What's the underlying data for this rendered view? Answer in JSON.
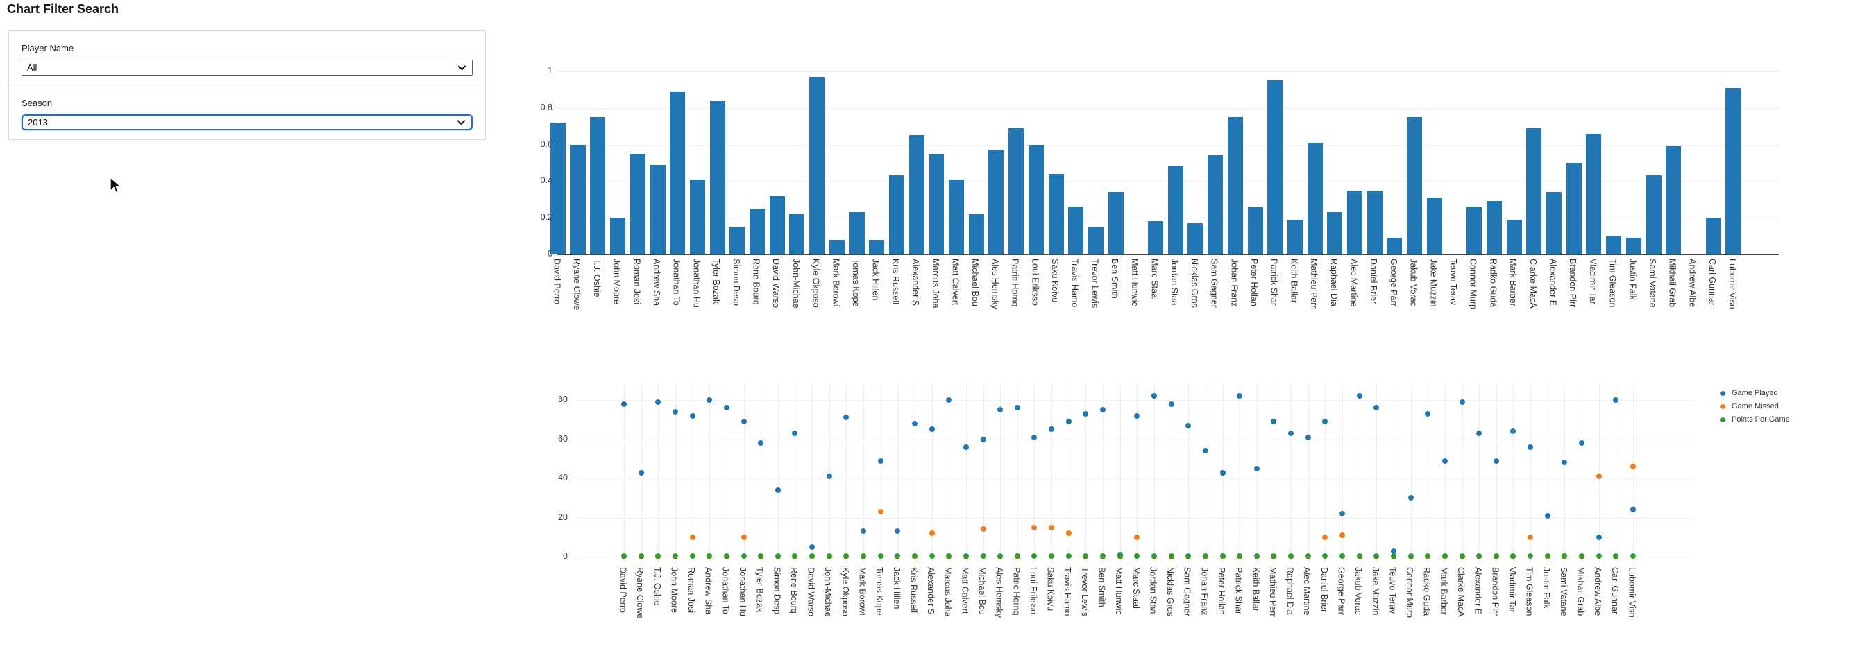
{
  "page": {
    "title": "Chart Filter Search"
  },
  "filters": {
    "player_name": {
      "label": "Player Name",
      "value": "All"
    },
    "season": {
      "label": "Season",
      "value": "2013"
    }
  },
  "colors": {
    "bar_blue": "#2077b4",
    "game_played": "#2077b4",
    "game_missed": "#f07d1a",
    "points_per_game": "#2ca02c",
    "focus_blue": "#1b6fd8",
    "gridline": "#efefef",
    "axis": "#454545"
  },
  "players": [
    "David Perro",
    "Ryane Clowe",
    "T.J. Oshie",
    "John Moore",
    "Roman Josi",
    "Andrew Sha",
    "Jonathan To",
    "Jonathan Hu",
    "Tyler Bozak",
    "Simon Desp",
    "Rene Bourq",
    "David Warso",
    "John-Michae",
    "Kyle Okposo",
    "Mark Borowi",
    "Tomas Kope",
    "Jack Hillen",
    "Kris Russell",
    "Alexander S",
    "Marcus Joha",
    "Matt Calvert",
    "Michael Bou",
    "Ales Hemsky",
    "Patric Hornq",
    "Loui Eriksso",
    "Saku Koivu",
    "Travis Hamo",
    "Trevor Lewis",
    "Ben Smith",
    "Matt Hunwic",
    "Marc Staal",
    "Jordan Staa",
    "Nicklas Gros",
    "Sam Gagner",
    "Johan Franz",
    "Peter Hollan",
    "Patrick Shar",
    "Keith Ballar",
    "Mathieu Perr",
    "Raphael Dia",
    "Alec Martine",
    "Daniel Brier",
    "George Parr",
    "Jakub Vorac",
    "Jake Muzzin",
    "Teuvo Terav",
    "Connor Murp",
    "Radko Guda",
    "Mark Barber",
    "Clarke MacA",
    "Alexander E",
    "Brandon Pirr",
    "Vladimir Tar",
    "Tim Gleason",
    "Justin Falk",
    "Sami Vatane",
    "Mikhail Grab",
    "Andrew Albe",
    "Carl Gunnar",
    "Lubomir Visn"
  ],
  "chart_data": [
    {
      "type": "bar",
      "title": "",
      "xlabel": "",
      "ylabel": "",
      "ylim": [
        0,
        1
      ],
      "yticks": [
        "0",
        "0.2",
        "0.4",
        "0.6",
        "0.8",
        "1"
      ],
      "grid": true,
      "bar_color": "#2077b4",
      "categories": [
        "David Perro",
        "Ryane Clowe",
        "T.J. Oshie",
        "John Moore",
        "Roman Josi",
        "Andrew Sha",
        "Jonathan To",
        "Jonathan Hu",
        "Tyler Bozak",
        "Simon Desp",
        "Rene Bourq",
        "David Warso",
        "John-Michae",
        "Kyle Okposo",
        "Mark Borowi",
        "Tomas Kope",
        "Jack Hillen",
        "Kris Russell",
        "Alexander S",
        "Marcus Joha",
        "Matt Calvert",
        "Michael Bou",
        "Ales Hemsky",
        "Patric Hornq",
        "Loui Eriksso",
        "Saku Koivu",
        "Travis Hamo",
        "Trevor Lewis",
        "Ben Smith",
        "Matt Hunwic",
        "Marc Staal",
        "Jordan Staa",
        "Nicklas Gros",
        "Sam Gagner",
        "Johan Franz",
        "Peter Hollan",
        "Patrick Shar",
        "Keith Ballar",
        "Mathieu Perr",
        "Raphael Dia",
        "Alec Martine",
        "Daniel Brier",
        "George Parr",
        "Jakub Vorac",
        "Jake Muzzin",
        "Teuvo Terav",
        "Connor Murp",
        "Radko Guda",
        "Mark Barber",
        "Clarke MacA",
        "Alexander E",
        "Brandon Pirr",
        "Vladimir Tar",
        "Tim Gleason",
        "Justin Falk",
        "Sami Vatane",
        "Mikhail Grab",
        "Andrew Albe",
        "Carl Gunnar",
        "Lubomir Visn"
      ],
      "values": [
        0.72,
        0.6,
        0.75,
        0.2,
        0.55,
        0.49,
        0.89,
        0.41,
        0.84,
        0.15,
        0.25,
        0.32,
        0.22,
        0.97,
        0.08,
        0.23,
        0.08,
        0.43,
        0.65,
        0.55,
        0.41,
        0.22,
        0.57,
        0.69,
        0.6,
        0.44,
        0.26,
        0.15,
        0.34,
        0,
        0.18,
        0.48,
        0.17,
        0.54,
        0.75,
        0.26,
        0.95,
        0.19,
        0.61,
        0.23,
        0.35,
        0.35,
        0.09,
        0.75,
        0.31,
        0,
        0.26,
        0.29,
        0.19,
        0.69,
        0.34,
        0.5,
        0.66,
        0.1,
        0.09,
        0.43,
        0.59,
        0,
        0.2,
        0.91
      ]
    },
    {
      "type": "scatter",
      "title": "",
      "xlabel": "",
      "ylabel": "",
      "ylim": [
        0,
        88
      ],
      "yticks": [
        "0",
        "20",
        "40",
        "60",
        "80"
      ],
      "grid": true,
      "legend_position": "right",
      "categories": [
        "David Perro",
        "Ryane Clowe",
        "T.J. Oshie",
        "John Moore",
        "Roman Josi",
        "Andrew Sha",
        "Jonathan To",
        "Jonathan Hu",
        "Tyler Bozak",
        "Simon Desp",
        "Rene Bourq",
        "David Warso",
        "John-Michae",
        "Kyle Okposo",
        "Mark Borowi",
        "Tomas Kope",
        "Jack Hillen",
        "Kris Russell",
        "Alexander S",
        "Marcus Joha",
        "Matt Calvert",
        "Michael Bou",
        "Ales Hemsky",
        "Patric Hornq",
        "Loui Eriksso",
        "Saku Koivu",
        "Travis Hamo",
        "Trevor Lewis",
        "Ben Smith",
        "Matt Hunwic",
        "Marc Staal",
        "Jordan Staa",
        "Nicklas Gros",
        "Sam Gagner",
        "Johan Franz",
        "Peter Hollan",
        "Patrick Shar",
        "Keith Ballar",
        "Mathieu Perr",
        "Raphael Dia",
        "Alec Martine",
        "Daniel Brier",
        "George Parr",
        "Jakub Vorac",
        "Jake Muzzin",
        "Teuvo Terav",
        "Connor Murp",
        "Radko Guda",
        "Mark Barber",
        "Clarke MacA",
        "Alexander E",
        "Brandon Pirr",
        "Vladimir Tar",
        "Tim Gleason",
        "Justin Falk",
        "Sami Vatane",
        "Mikhail Grab",
        "Andrew Albe",
        "Carl Gunnar",
        "Lubomir Visn"
      ],
      "series": [
        {
          "name": "Game Played",
          "color": "#2077b4",
          "values": [
            78,
            43,
            79,
            74,
            72,
            80,
            76,
            69,
            58,
            34,
            63,
            5,
            41,
            71,
            13,
            49,
            13,
            68,
            65,
            80,
            56,
            60,
            75,
            76,
            61,
            65,
            69,
            73,
            75,
            1,
            72,
            82,
            78,
            67,
            54,
            43,
            82,
            45,
            69,
            63,
            61,
            69,
            22,
            82,
            76,
            3,
            30,
            73,
            49,
            79,
            63,
            49,
            64,
            56,
            21,
            48,
            58,
            10,
            80,
            24
          ]
        },
        {
          "name": "Game Missed",
          "color": "#f07d1a",
          "values": [
            0,
            0,
            0,
            0,
            10,
            0,
            0,
            10,
            0,
            0,
            0,
            0,
            0,
            0,
            0,
            23,
            0,
            0,
            12,
            0,
            0,
            14,
            0,
            0,
            15,
            15,
            12,
            0,
            0,
            0,
            10,
            0,
            0,
            0,
            0,
            0,
            0,
            0,
            0,
            0,
            0,
            10,
            11,
            0,
            0,
            0,
            0,
            0,
            0,
            0,
            0,
            0,
            0,
            10,
            0,
            0,
            0,
            41,
            0,
            46
          ]
        },
        {
          "name": "Points Per Game",
          "color": "#2ca02c",
          "values": [
            0.5,
            0.5,
            0.5,
            0.5,
            0.5,
            0.5,
            0.5,
            0.5,
            0.5,
            0.5,
            0.5,
            0.5,
            0.5,
            0.5,
            0.5,
            0.5,
            0.5,
            0.5,
            0.5,
            0.5,
            0.5,
            0.5,
            0.5,
            0.5,
            0.5,
            0.5,
            0.5,
            0.5,
            0.5,
            0.5,
            0.5,
            0.5,
            0.5,
            0.5,
            0.5,
            0.5,
            0.5,
            0.5,
            0.5,
            0.5,
            0.5,
            0.5,
            0.5,
            0.5,
            0.5,
            0.5,
            0.5,
            0.5,
            0.5,
            0.5,
            0.5,
            0.5,
            0.5,
            0.5,
            0.5,
            0.5,
            0.5,
            0.5,
            0.5,
            0.5
          ]
        }
      ]
    }
  ]
}
